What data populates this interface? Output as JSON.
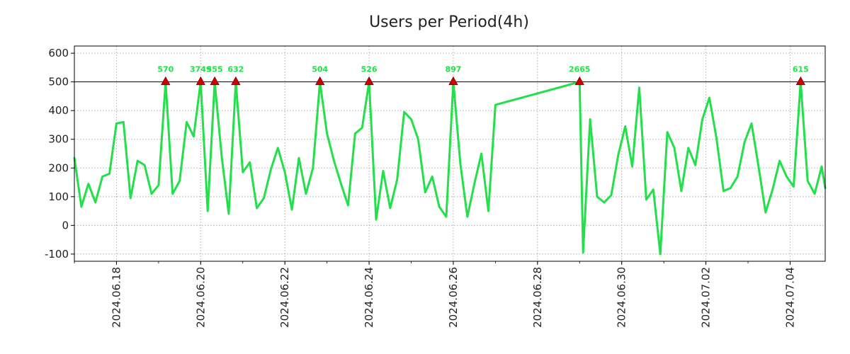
{
  "chart_data": {
    "type": "line",
    "title": "Users per Period(4h)",
    "xlabel": "",
    "ylabel": "",
    "ylim": [
      -125,
      625
    ],
    "yticks": [
      600,
      500,
      400,
      300,
      200,
      100,
      0,
      -100
    ],
    "ytick_labels": [
      "600",
      "500",
      "400",
      "300",
      "200",
      "100",
      "0",
      "-100"
    ],
    "xlim": [
      0,
      107
    ],
    "xticks": [
      {
        "x": 6,
        "label": "2024.06.18"
      },
      {
        "x": 18,
        "label": "2024.06.20"
      },
      {
        "x": 30,
        "label": "2024.06.22"
      },
      {
        "x": 42,
        "label": "2024.06.24"
      },
      {
        "x": 54,
        "label": "2024.06.26"
      },
      {
        "x": 66,
        "label": "2024.06.28"
      },
      {
        "x": 78,
        "label": "2024.06.30"
      },
      {
        "x": 90,
        "label": "2024.07.02"
      },
      {
        "x": 102,
        "label": "2024.07.04"
      }
    ],
    "grid": true,
    "cap_line": 500,
    "series": [
      {
        "name": "users",
        "color": "#22e04a",
        "points": [
          [
            0,
            235
          ],
          [
            1,
            65
          ],
          [
            2,
            145
          ],
          [
            3,
            80
          ],
          [
            4,
            170
          ],
          [
            5,
            180
          ],
          [
            6,
            355
          ],
          [
            7,
            360
          ],
          [
            8,
            95
          ],
          [
            9,
            225
          ],
          [
            10,
            210
          ],
          [
            11,
            110
          ],
          [
            12,
            140
          ],
          [
            13,
            500
          ],
          [
            14,
            110
          ],
          [
            15,
            155
          ],
          [
            16,
            360
          ],
          [
            17,
            310
          ],
          [
            18,
            500
          ],
          [
            19,
            50
          ],
          [
            20,
            500
          ],
          [
            21,
            240
          ],
          [
            22,
            40
          ],
          [
            23,
            500
          ],
          [
            24,
            185
          ],
          [
            25,
            220
          ],
          [
            26,
            60
          ],
          [
            27,
            95
          ],
          [
            28,
            195
          ],
          [
            29,
            270
          ],
          [
            30,
            185
          ],
          [
            31,
            55
          ],
          [
            32,
            235
          ],
          [
            33,
            110
          ],
          [
            34,
            200
          ],
          [
            35,
            500
          ],
          [
            36,
            320
          ],
          [
            37,
            225
          ],
          [
            38,
            145
          ],
          [
            39,
            70
          ],
          [
            40,
            320
          ],
          [
            41,
            340
          ],
          [
            42,
            500
          ],
          [
            43,
            20
          ],
          [
            44,
            190
          ],
          [
            45,
            60
          ],
          [
            46,
            160
          ],
          [
            47,
            395
          ],
          [
            48,
            370
          ],
          [
            49,
            300
          ],
          [
            50,
            115
          ],
          [
            51,
            170
          ],
          [
            52,
            65
          ],
          [
            53,
            30
          ],
          [
            54,
            500
          ],
          [
            55,
            215
          ],
          [
            56,
            30
          ],
          [
            57,
            145
          ],
          [
            58,
            250
          ],
          [
            59,
            50
          ],
          [
            60,
            420
          ],
          [
            72,
            500
          ],
          [
            72.5,
            -95
          ],
          [
            73.5,
            370
          ],
          [
            74.5,
            100
          ],
          [
            75.5,
            80
          ],
          [
            76.5,
            105
          ],
          [
            77.5,
            245
          ],
          [
            78.5,
            345
          ],
          [
            79.5,
            205
          ],
          [
            80.5,
            480
          ],
          [
            81.5,
            90
          ],
          [
            82.5,
            125
          ],
          [
            83.5,
            -100
          ],
          [
            84.5,
            325
          ],
          [
            85.5,
            270
          ],
          [
            86.5,
            120
          ],
          [
            87.5,
            270
          ],
          [
            88.5,
            210
          ],
          [
            89.5,
            370
          ],
          [
            90.5,
            445
          ],
          [
            91.5,
            305
          ],
          [
            92.5,
            120
          ],
          [
            93.5,
            130
          ],
          [
            94.5,
            170
          ],
          [
            95.5,
            290
          ],
          [
            96.5,
            355
          ],
          [
            97.5,
            205
          ],
          [
            98.5,
            45
          ],
          [
            99.5,
            125
          ],
          [
            100.5,
            225
          ],
          [
            101.5,
            170
          ],
          [
            102.5,
            135
          ],
          [
            103.5,
            500
          ],
          [
            104.5,
            155
          ],
          [
            105.5,
            110
          ],
          [
            106.5,
            205
          ],
          [
            107,
            130
          ]
        ]
      }
    ],
    "capped_points": [
      {
        "x": 13,
        "y": 500,
        "label": "570"
      },
      {
        "x": 18,
        "y": 500,
        "label": "3749"
      },
      {
        "x": 20,
        "y": 500,
        "label": "555"
      },
      {
        "x": 23,
        "y": 500,
        "label": "632"
      },
      {
        "x": 35,
        "y": 500,
        "label": "504"
      },
      {
        "x": 42,
        "y": 500,
        "label": "526"
      },
      {
        "x": 54,
        "y": 500,
        "label": "897"
      },
      {
        "x": 72,
        "y": 500,
        "label": "2665"
      },
      {
        "x": 103.5,
        "y": 500,
        "label": "615"
      }
    ],
    "marker_color": "#cc0000",
    "label_color": "#22e04a"
  }
}
